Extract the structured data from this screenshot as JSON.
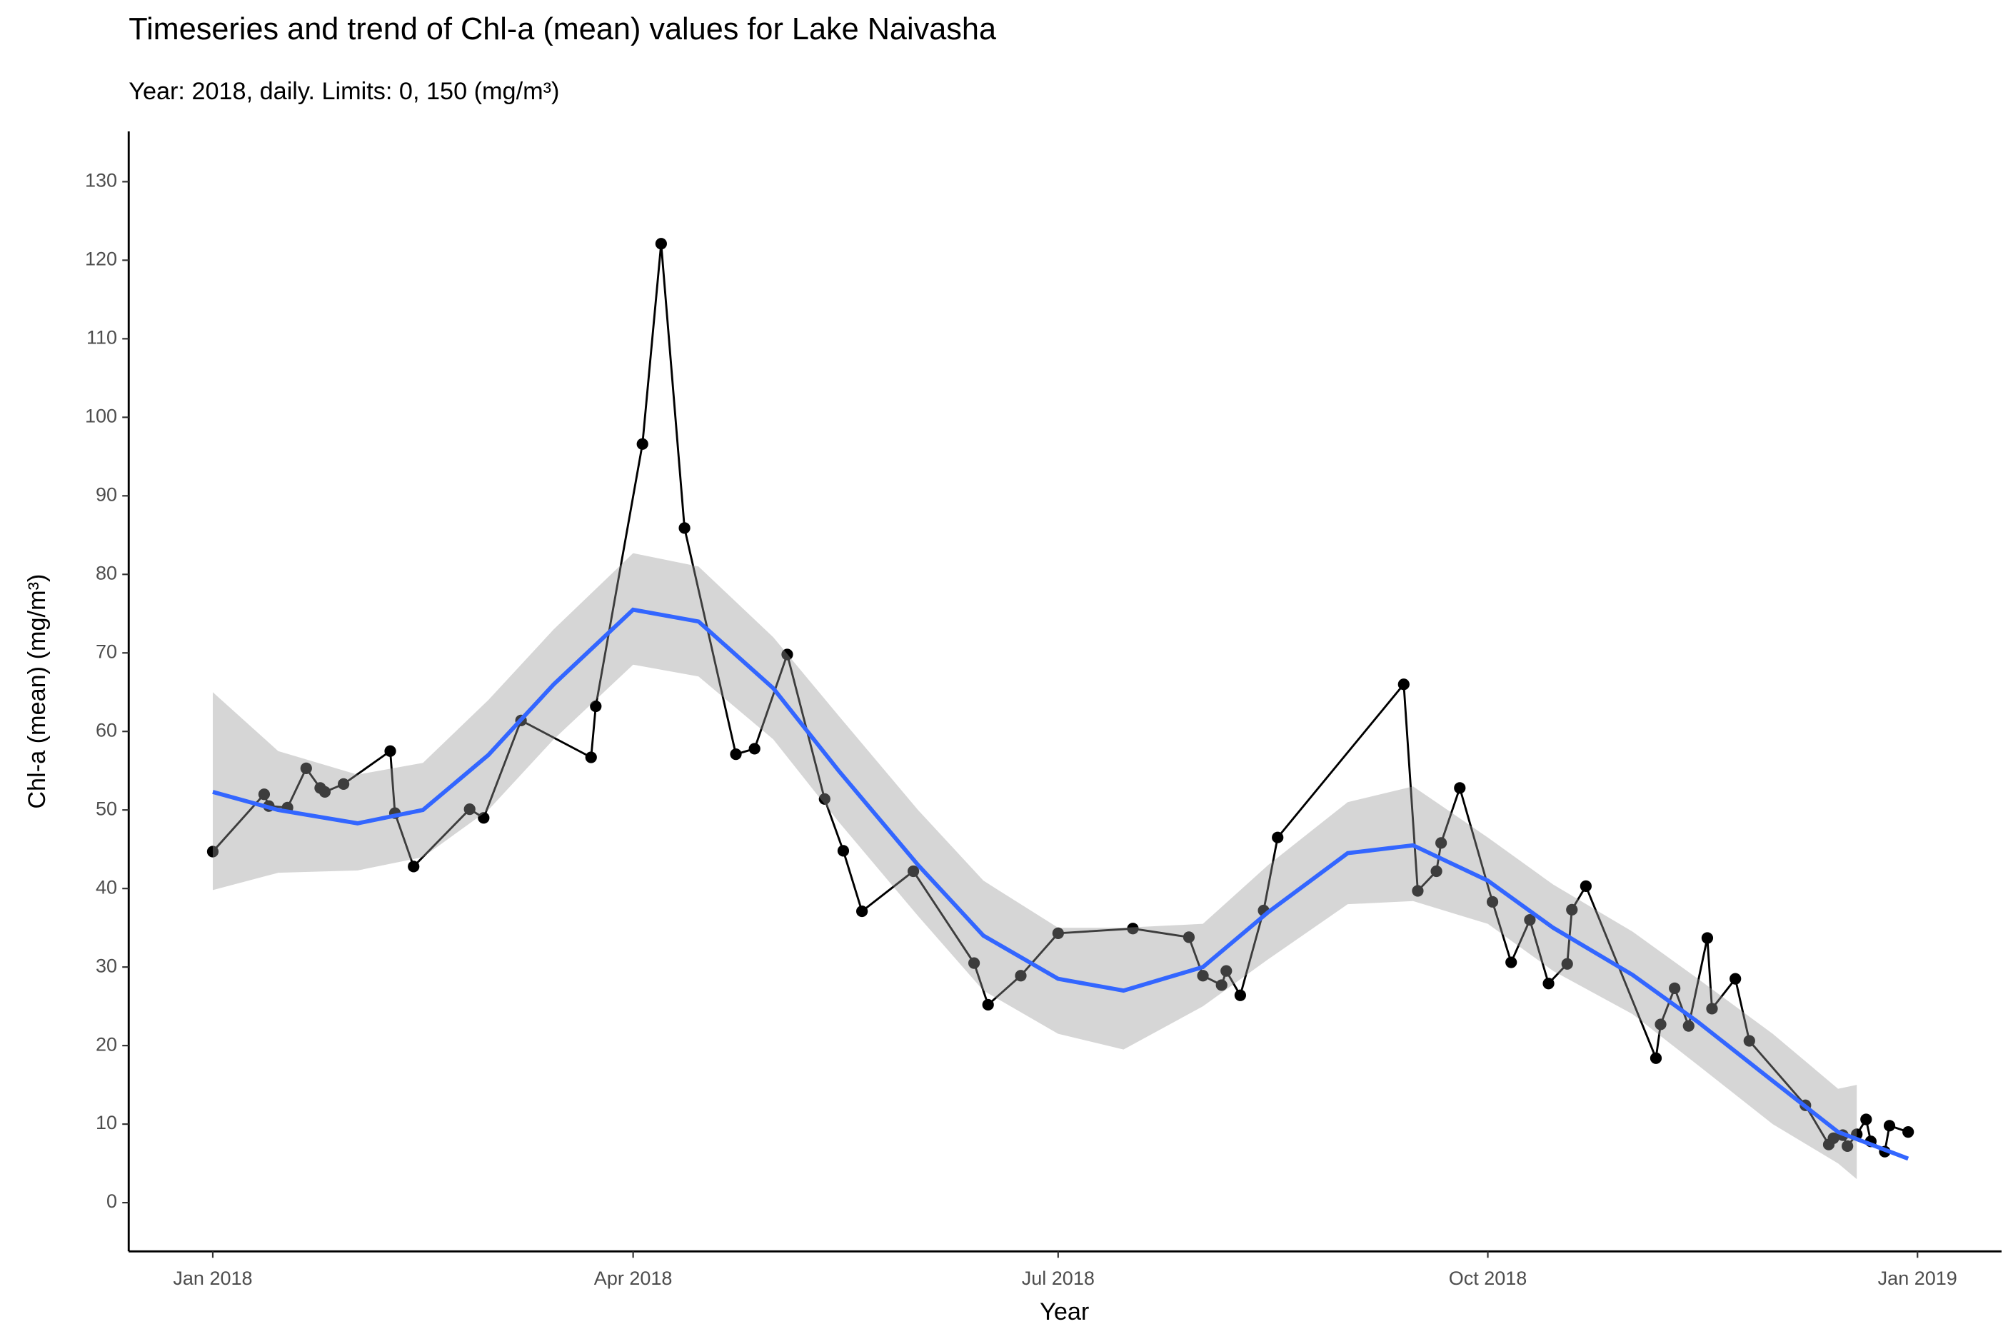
{
  "chart_data": {
    "type": "line",
    "title": "Timeseries and trend of Chl-a (mean) values for Lake Naivasha",
    "subtitle": "Year: 2018, daily. Limits: 0, 150 (mg/m³)",
    "x_label": "Year",
    "y_label": "Chl-a (mean) (mg/m³)",
    "color": "#000000",
    "x": [
      "2018-01-01",
      "2018-01-12",
      "2018-01-13",
      "2018-01-17",
      "2018-01-21",
      "2018-01-24",
      "2018-01-25",
      "2018-01-29",
      "2018-02-08",
      "2018-02-09",
      "2018-02-13",
      "2018-02-25",
      "2018-02-28",
      "2018-03-08",
      "2018-03-23",
      "2018-03-24",
      "2018-04-03",
      "2018-04-07",
      "2018-04-12",
      "2018-04-23",
      "2018-04-27",
      "2018-05-04",
      "2018-05-12",
      "2018-05-16",
      "2018-05-20",
      "2018-05-31",
      "2018-06-13",
      "2018-06-16",
      "2018-06-23",
      "2018-07-01",
      "2018-07-17",
      "2018-07-29",
      "2018-08-01",
      "2018-08-05",
      "2018-08-06",
      "2018-08-09",
      "2018-08-14",
      "2018-08-17",
      "2018-09-13",
      "2018-09-16",
      "2018-09-20",
      "2018-09-21",
      "2018-09-25",
      "2018-10-02",
      "2018-10-06",
      "2018-10-10",
      "2018-10-14",
      "2018-10-18",
      "2018-10-19",
      "2018-10-22",
      "2018-11-06",
      "2018-11-07",
      "2018-11-10",
      "2018-11-13",
      "2018-11-17",
      "2018-11-18",
      "2018-11-23",
      "2018-11-26",
      "2018-12-08",
      "2018-12-13",
      "2018-12-14",
      "2018-12-16",
      "2018-12-17",
      "2018-12-19",
      "2018-12-21",
      "2018-12-22",
      "2018-12-25",
      "2018-12-26",
      "2018-12-30"
    ],
    "values": [
      44.7,
      52,
      50.5,
      50.3,
      55.3,
      52.8,
      52.3,
      53.3,
      57.5,
      49.6,
      42.8,
      50.1,
      49,
      61.4,
      56.7,
      63.2,
      96.6,
      122.1,
      85.9,
      57.1,
      57.8,
      69.8,
      51.4,
      44.8,
      37.1,
      42.2,
      30.5,
      25.2,
      28.9,
      34.3,
      34.9,
      33.8,
      28.9,
      27.7,
      29.5,
      26.4,
      37.2,
      46.5,
      66,
      39.7,
      42.2,
      45.8,
      52.8,
      38.3,
      30.6,
      36,
      27.9,
      30.4,
      37.3,
      40.3,
      18.4,
      22.7,
      27.3,
      22.5,
      33.7,
      24.7,
      28.5,
      20.6,
      12.4,
      7.4,
      8.2,
      8.6,
      7.2,
      8.7,
      10.6,
      7.8,
      6.5,
      9.8,
      9
    ],
    "trend": {
      "color": "#3366FF",
      "x": [
        "2018-01-01",
        "2018-01-15",
        "2018-02-01",
        "2018-02-15",
        "2018-03-01",
        "2018-03-15",
        "2018-04-01",
        "2018-04-15",
        "2018-05-01",
        "2018-05-15",
        "2018-06-01",
        "2018-06-15",
        "2018-07-01",
        "2018-07-15",
        "2018-08-01",
        "2018-08-15",
        "2018-09-01",
        "2018-09-15",
        "2018-10-01",
        "2018-10-15",
        "2018-11-01",
        "2018-11-15",
        "2018-12-01",
        "2018-12-15",
        "2018-12-30"
      ],
      "values": [
        52.3,
        50,
        48.3,
        50,
        57,
        66,
        75.5,
        74,
        65.5,
        55,
        43,
        34,
        28.5,
        27,
        30,
        37,
        44.5,
        45.5,
        41,
        35,
        29,
        23,
        15.5,
        9,
        5.6
      ]
    },
    "band": {
      "color": "#999999",
      "x": [
        "2018-01-01",
        "2018-01-15",
        "2018-02-01",
        "2018-02-15",
        "2018-03-01",
        "2018-03-15",
        "2018-04-01",
        "2018-04-15",
        "2018-05-01",
        "2018-05-15",
        "2018-06-01",
        "2018-06-15",
        "2018-07-01",
        "2018-07-15",
        "2018-08-01",
        "2018-08-15",
        "2018-09-01",
        "2018-09-15",
        "2018-10-01",
        "2018-10-15",
        "2018-11-01",
        "2018-11-15",
        "2018-12-01",
        "2018-12-15",
        "2018-12-19"
      ],
      "lower": [
        39.8,
        42,
        42.3,
        44,
        50,
        59,
        68.5,
        67,
        59,
        48.5,
        36.5,
        27,
        21.5,
        19.5,
        25,
        31,
        38,
        38.4,
        35.5,
        29.5,
        24,
        17.5,
        10,
        5,
        3
      ],
      "upper": [
        65,
        57.5,
        54.5,
        56,
        64,
        73,
        82.7,
        81,
        72,
        62,
        50,
        41,
        35,
        35,
        35.5,
        43,
        51,
        53,
        46.5,
        40.5,
        34.5,
        28.5,
        21.5,
        14.5,
        15
      ]
    },
    "xlim": [
      "2017-12-14",
      "2019-01-19"
    ],
    "xticks": [
      {
        "value": "2018-01-01",
        "label": "Jan 2018"
      },
      {
        "value": "2018-04-01",
        "label": "Apr 2018"
      },
      {
        "value": "2018-07-01",
        "label": "Jul 2018"
      },
      {
        "value": "2018-10-01",
        "label": "Oct 2018"
      },
      {
        "value": "2019-01-01",
        "label": "Jan 2019"
      }
    ],
    "ylim": [
      -6.2,
      136.4
    ],
    "yticks": [
      0,
      10,
      20,
      30,
      40,
      50,
      60,
      70,
      80,
      90,
      100,
      110,
      120,
      130
    ]
  }
}
